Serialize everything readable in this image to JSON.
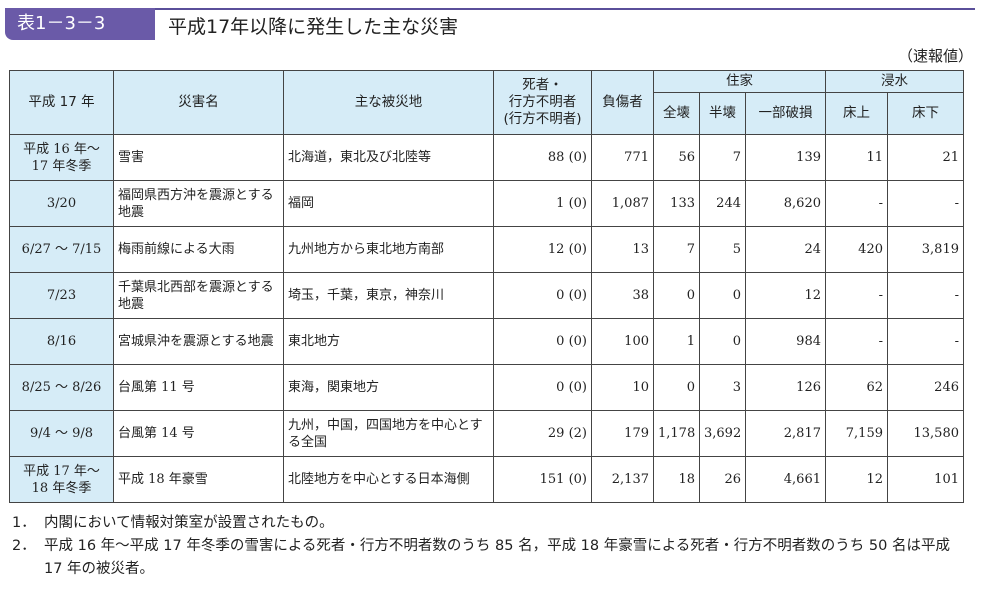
{
  "header": {
    "badge": "表1－3－3",
    "title": "平成17年以降に発生した主な災害",
    "unit_note": "（速報値）"
  },
  "table": {
    "headers": {
      "period": "平成 17 年",
      "disaster_name": "災害名",
      "area": "主な被災地",
      "deaths_line1": "死者・",
      "deaths_line2": "行方不明者",
      "deaths_line3": "(行方不明者)",
      "injured": "負傷者",
      "housing": "住家",
      "housing_full": "全壊",
      "housing_half": "半壊",
      "housing_partial": "一部破損",
      "flood": "浸水",
      "flood_above": "床上",
      "flood_below": "床下"
    },
    "rows": [
      {
        "period_l1": "平成 16 年～",
        "period_l2": "17 年冬季",
        "name": "雪害",
        "area": "北海道，東北及び北陸等",
        "deaths": "88 (0)",
        "injured": "771",
        "full": "56",
        "half": "7",
        "partial": "139",
        "above": "11",
        "below": "21"
      },
      {
        "period_l1": "3/20",
        "period_l2": "",
        "name": "福岡県西方沖を震源とする地震",
        "area": "福岡",
        "deaths": "1 (0)",
        "injured": "1,087",
        "full": "133",
        "half": "244",
        "partial": "8,620",
        "above": "-",
        "below": "-"
      },
      {
        "period_l1": "6/27 ～ 7/15",
        "period_l2": "",
        "name": "梅雨前線による大雨",
        "area": "九州地方から東北地方南部",
        "deaths": "12 (0)",
        "injured": "13",
        "full": "7",
        "half": "5",
        "partial": "24",
        "above": "420",
        "below": "3,819"
      },
      {
        "period_l1": "7/23",
        "period_l2": "",
        "name": "千葉県北西部を震源とする地震",
        "area": "埼玉，千葉，東京，神奈川",
        "deaths": "0 (0)",
        "injured": "38",
        "full": "0",
        "half": "0",
        "partial": "12",
        "above": "-",
        "below": "-"
      },
      {
        "period_l1": "8/16",
        "period_l2": "",
        "name": "宮城県沖を震源とする地震",
        "area": "東北地方",
        "deaths": "0 (0)",
        "injured": "100",
        "full": "1",
        "half": "0",
        "partial": "984",
        "above": "-",
        "below": "-"
      },
      {
        "period_l1": "8/25 ～ 8/26",
        "period_l2": "",
        "name": "台風第 11 号",
        "area": "東海，関東地方",
        "deaths": "0 (0)",
        "injured": "10",
        "full": "0",
        "half": "3",
        "partial": "126",
        "above": "62",
        "below": "246"
      },
      {
        "period_l1": "9/4 ～ 9/8",
        "period_l2": "",
        "name": "台風第 14 号",
        "area": "九州，中国，四国地方を中心とする全国",
        "deaths": "29 (2)",
        "injured": "179",
        "full": "1,178",
        "half": "3,692",
        "partial": "2,817",
        "above": "7,159",
        "below": "13,580"
      },
      {
        "period_l1": "平成 17 年～",
        "period_l2": "18 年冬季",
        "name": "平成 18 年豪雪",
        "area": "北陸地方を中心とする日本海側",
        "deaths": "151 (0)",
        "injured": "2,137",
        "full": "18",
        "half": "26",
        "partial": "4,661",
        "above": "12",
        "below": "101"
      }
    ]
  },
  "notes": [
    {
      "num": "1．",
      "text": "内閣において情報対策室が設置されたもの。"
    },
    {
      "num": "2．",
      "text": "平成 16 年～平成 17 年冬季の雪害による死者・行方不明者数のうち 85 名，平成 18 年豪雪による死者・行方不明者数のうち 50 名は平成 17 年の被災者。"
    }
  ]
}
